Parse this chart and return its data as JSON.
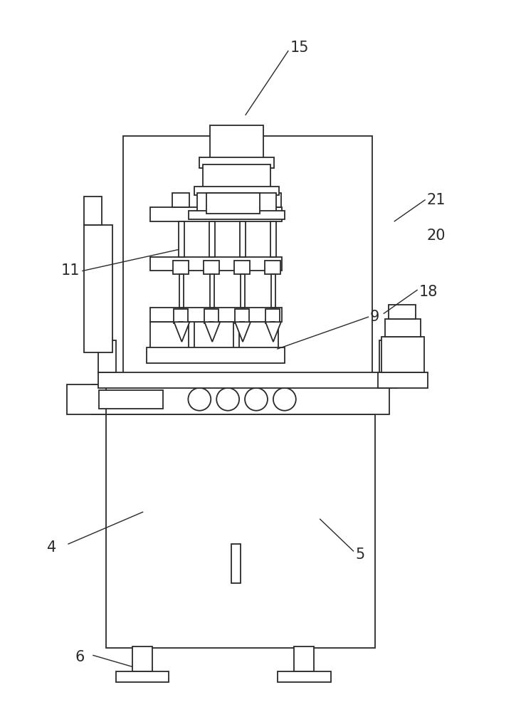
{
  "bg_color": "#ffffff",
  "line_color": "#2a2a2a",
  "line_width": 1.3,
  "fig_width": 7.25,
  "fig_height": 10.0,
  "label_fontsize": 15
}
